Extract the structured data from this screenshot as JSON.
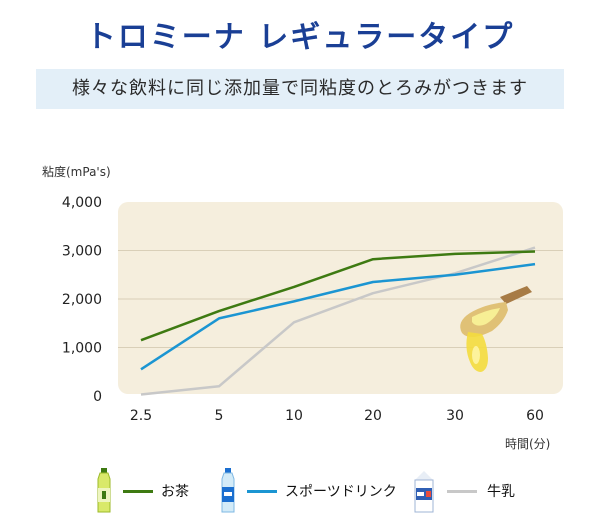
{
  "header": {
    "title": "トロミーナ レギュラータイプ",
    "subtitle": "様々な飲料に同じ添加量で同粘度のとろみがつきます"
  },
  "colors": {
    "title": "#1a3f95",
    "subtitle_bg": "#e3eff8",
    "plot_bg": "#f5eedd",
    "green_tea": "#3e7a12",
    "sports_drink": "#1b95d2",
    "milk": "#c8c8c8"
  },
  "icons": [
    "green-tea-bottle-icon",
    "sports-drink-bottle-icon",
    "milk-carton-icon",
    "thickened-liquid-spoon-icon"
  ],
  "chart_data": {
    "type": "line",
    "ylabel": "粘度(mPa's)",
    "xlabel": "時間(分)",
    "categories": [
      "2.5",
      "5",
      "10",
      "20",
      "30",
      "60"
    ],
    "ylim": [
      0,
      4000
    ],
    "yticks": [
      "0",
      "1,000",
      "2,000",
      "3,000",
      "4,000"
    ],
    "grid": true,
    "legend_position": "bottom",
    "series": [
      {
        "name": "お茶",
        "color": "#3e7a12",
        "values": [
          1150,
          1750,
          2250,
          2820,
          2930,
          2980
        ]
      },
      {
        "name": "スポーツドリンク",
        "color": "#1b95d2",
        "values": [
          550,
          1600,
          1950,
          2350,
          2500,
          2720
        ]
      },
      {
        "name": "牛乳",
        "color": "#c8c8c8",
        "values": [
          30,
          200,
          1520,
          2120,
          2530,
          3060
        ]
      }
    ]
  }
}
